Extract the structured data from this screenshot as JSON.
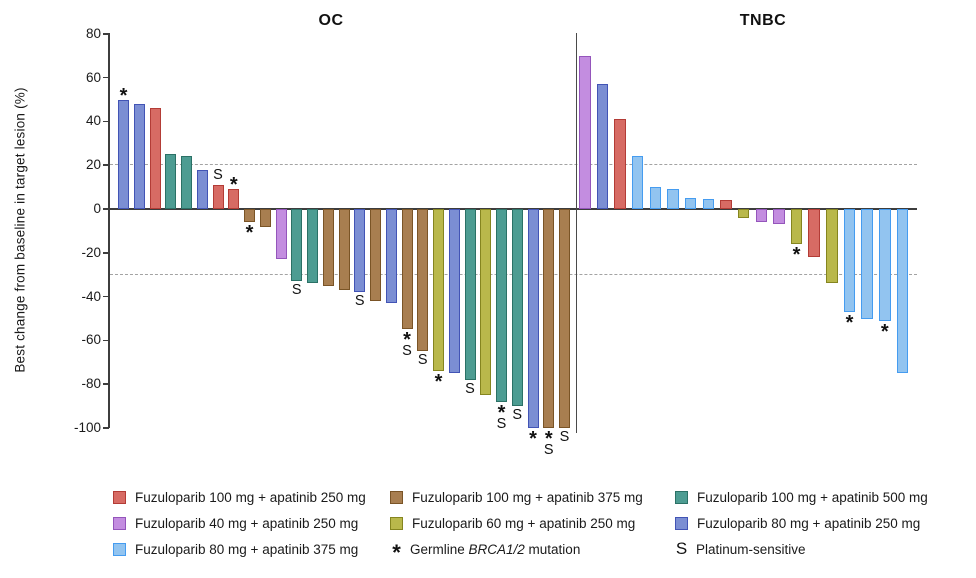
{
  "chart_data": {
    "type": "bar",
    "subtype": "waterfall",
    "ylabel": "Best change from baseline in target lesion (%)",
    "ylim": [
      -100,
      80
    ],
    "yticks": [
      80,
      60,
      40,
      20,
      0,
      -20,
      -40,
      -60,
      -80,
      -100
    ],
    "reference_lines": [
      20,
      -30
    ],
    "legend_position": "bottom",
    "markers": {
      "brca": "*",
      "platinum": "S"
    },
    "marker_meanings": {
      "brca": "Germline BRCA1/2 mutation",
      "platinum": "Platinum-sensitive"
    },
    "groups": {
      "F100A250": {
        "label": "Fuzuloparib 100 mg + apatinib 250 mg",
        "fill": "#d76b64",
        "border": "#b33c36"
      },
      "F100A375": {
        "label": "Fuzuloparib 100 mg + apatinib 375 mg",
        "fill": "#a87e50",
        "border": "#7a5426"
      },
      "F100A500": {
        "label": "Fuzuloparib 100 mg + apatinib 500 mg",
        "fill": "#4d9c92",
        "border": "#2b7166"
      },
      "F40A250": {
        "label": "Fuzuloparib 40 mg + apatinib 250 mg",
        "fill": "#c38de0",
        "border": "#9455bb"
      },
      "F60A250": {
        "label": "Fuzuloparib 60 mg + apatinib 250 mg",
        "fill": "#b9b84b",
        "border": "#85851f"
      },
      "F80A250": {
        "label": "Fuzuloparib 80 mg + apatinib 250 mg",
        "fill": "#7b8ed3",
        "border": "#4254b5"
      },
      "F80A375": {
        "label": "Fuzuloparib 80 mg + apatinib 375 mg",
        "fill": "#92c4f0",
        "border": "#459cf0"
      }
    },
    "panels": [
      {
        "label": "OC",
        "bars": [
          {
            "value": 50,
            "group": "F80A250",
            "flags": [
              "brca"
            ]
          },
          {
            "value": 48,
            "group": "F80A250"
          },
          {
            "value": 46,
            "group": "F100A250"
          },
          {
            "value": 25,
            "group": "F100A500"
          },
          {
            "value": 24,
            "group": "F100A500"
          },
          {
            "value": 18,
            "group": "F80A250"
          },
          {
            "value": 11,
            "group": "F100A250",
            "flags": [
              "platinum"
            ]
          },
          {
            "value": 9,
            "group": "F100A250",
            "flags": [
              "brca"
            ]
          },
          {
            "value": -6,
            "group": "F100A375",
            "flags": [
              "brca"
            ]
          },
          {
            "value": -8,
            "group": "F100A375"
          },
          {
            "value": -23,
            "group": "F40A250"
          },
          {
            "value": -33,
            "group": "F100A500",
            "flags": [
              "platinum"
            ]
          },
          {
            "value": -34,
            "group": "F100A500"
          },
          {
            "value": -35,
            "group": "F100A375"
          },
          {
            "value": -37,
            "group": "F100A375"
          },
          {
            "value": -38,
            "group": "F80A250",
            "flags": [
              "platinum"
            ]
          },
          {
            "value": -42,
            "group": "F100A375"
          },
          {
            "value": -43,
            "group": "F80A250"
          },
          {
            "value": -55,
            "group": "F100A375",
            "flags": [
              "brca",
              "platinum"
            ]
          },
          {
            "value": -65,
            "group": "F100A375",
            "flags": [
              "platinum"
            ]
          },
          {
            "value": -74,
            "group": "F60A250",
            "flags": [
              "brca"
            ]
          },
          {
            "value": -75,
            "group": "F80A250"
          },
          {
            "value": -78,
            "group": "F100A500",
            "flags": [
              "platinum"
            ]
          },
          {
            "value": -85,
            "group": "F60A250"
          },
          {
            "value": -88,
            "group": "F100A500",
            "flags": [
              "brca",
              "platinum"
            ]
          },
          {
            "value": -90,
            "group": "F100A500",
            "flags": [
              "platinum"
            ]
          },
          {
            "value": -100,
            "group": "F80A250",
            "flags": [
              "brca"
            ]
          },
          {
            "value": -100,
            "group": "F100A375",
            "flags": [
              "brca",
              "platinum"
            ]
          },
          {
            "value": -100,
            "group": "F100A375",
            "flags": [
              "platinum"
            ]
          }
        ]
      },
      {
        "label": "TNBC",
        "bars": [
          {
            "value": 70,
            "group": "F40A250"
          },
          {
            "value": 57,
            "group": "F80A250"
          },
          {
            "value": 41,
            "group": "F100A250"
          },
          {
            "value": 24,
            "group": "F80A375"
          },
          {
            "value": 10,
            "group": "F80A375"
          },
          {
            "value": 9,
            "group": "F80A375"
          },
          {
            "value": 5,
            "group": "F80A375"
          },
          {
            "value": 4.5,
            "group": "F80A375"
          },
          {
            "value": 4,
            "group": "F100A250"
          },
          {
            "value": -4,
            "group": "F60A250"
          },
          {
            "value": -6,
            "group": "F40A250"
          },
          {
            "value": -7,
            "group": "F40A250"
          },
          {
            "value": -16,
            "group": "F60A250",
            "flags": [
              "brca"
            ]
          },
          {
            "value": -22,
            "group": "F100A250"
          },
          {
            "value": -34,
            "group": "F60A250"
          },
          {
            "value": -47,
            "group": "F80A375",
            "flags": [
              "brca"
            ]
          },
          {
            "value": -50,
            "group": "F80A375"
          },
          {
            "value": -51,
            "group": "F80A375",
            "flags": [
              "brca"
            ]
          },
          {
            "value": -75,
            "group": "F80A375"
          }
        ]
      }
    ]
  },
  "legend": {
    "rows": [
      [
        {
          "group": "F100A250"
        },
        {
          "group": "F100A375"
        },
        {
          "group": "F100A500"
        }
      ],
      [
        {
          "group": "F40A250"
        },
        {
          "group": "F60A250"
        },
        {
          "group": "F80A250"
        }
      ],
      [
        {
          "group": "F80A375"
        },
        {
          "symbol": "*",
          "prefix": "Germline ",
          "italic": "BRCA1/2",
          "suffix": " mutation"
        },
        {
          "symbol": "S",
          "label": "Platinum-sensitive"
        }
      ]
    ]
  }
}
